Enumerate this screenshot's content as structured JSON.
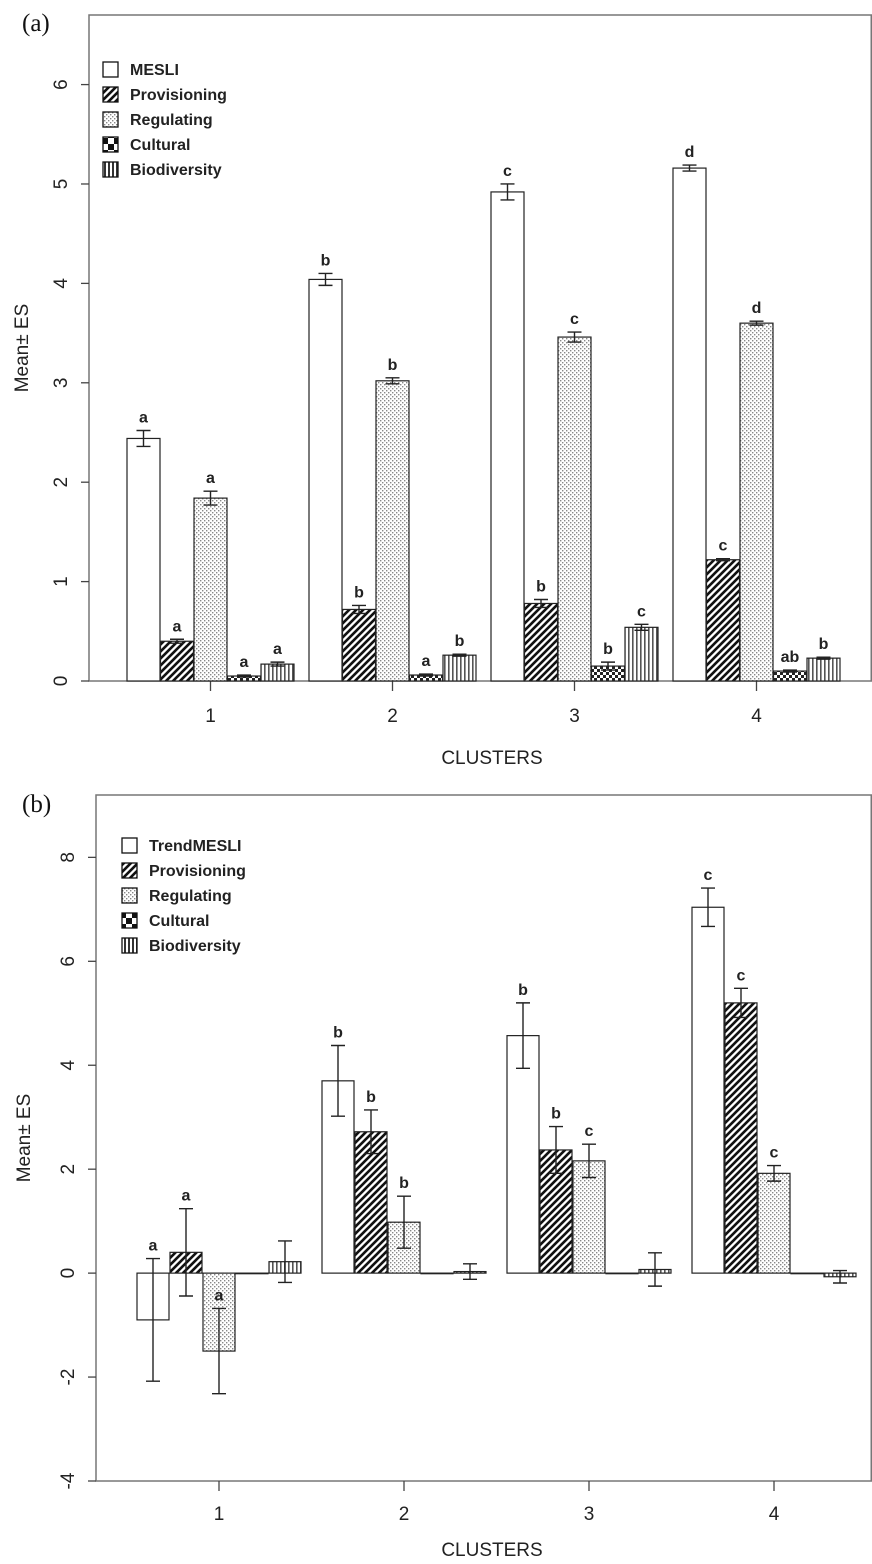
{
  "colors": {
    "axis": "#777777",
    "bar_outline": "#222222",
    "text": "#222222"
  },
  "chart_data": [
    {
      "type": "bar",
      "panel_label": "(a)",
      "xlabel": "CLUSTERS",
      "ylabel": "Mean± ES",
      "categories": [
        "1",
        "2",
        "3",
        "4"
      ],
      "ylim": [
        0,
        6.7
      ],
      "yticks": [
        0,
        1,
        2,
        3,
        4,
        5,
        6
      ],
      "legend_position": "top-left",
      "series": [
        {
          "name": "MESLI",
          "pattern": "white",
          "values": [
            2.44,
            4.04,
            4.92,
            5.16
          ],
          "errors": [
            0.08,
            0.06,
            0.08,
            0.03
          ],
          "labels": [
            "a",
            "b",
            "c",
            "d"
          ]
        },
        {
          "name": "Provisioning",
          "pattern": "diagonal",
          "values": [
            0.4,
            0.72,
            0.78,
            1.22
          ],
          "errors": [
            0.02,
            0.04,
            0.04,
            0.01
          ],
          "labels": [
            "a",
            "b",
            "b",
            "c"
          ]
        },
        {
          "name": "Regulating",
          "pattern": "dotted",
          "values": [
            1.84,
            3.02,
            3.46,
            3.6
          ],
          "errors": [
            0.07,
            0.03,
            0.05,
            0.02
          ],
          "labels": [
            "a",
            "b",
            "c",
            "d"
          ]
        },
        {
          "name": "Cultural",
          "pattern": "checker",
          "values": [
            0.05,
            0.06,
            0.15,
            0.1
          ],
          "errors": [
            0.01,
            0.01,
            0.04,
            0.01
          ],
          "labels": [
            "a",
            "a",
            "b",
            "ab"
          ]
        },
        {
          "name": "Biodiversity",
          "pattern": "vertical",
          "values": [
            0.17,
            0.26,
            0.54,
            0.23
          ],
          "errors": [
            0.02,
            0.01,
            0.03,
            0.01
          ],
          "labels": [
            "a",
            "b",
            "c",
            "b"
          ]
        }
      ]
    },
    {
      "type": "bar",
      "panel_label": "(b)",
      "xlabel": "CLUSTERS",
      "ylabel": "Mean± ES",
      "categories": [
        "1",
        "2",
        "3",
        "4"
      ],
      "ylim": [
        -4,
        9.2
      ],
      "yticks": [
        -4,
        -2,
        0,
        2,
        4,
        6,
        8
      ],
      "legend_position": "top-left",
      "series": [
        {
          "name": "TrendMESLI",
          "pattern": "white",
          "values": [
            -0.9,
            3.7,
            4.57,
            7.04
          ],
          "errors": [
            1.18,
            0.68,
            0.63,
            0.37
          ],
          "labels": [
            "a",
            "b",
            "b",
            "c"
          ]
        },
        {
          "name": "Provisioning",
          "pattern": "diagonal",
          "values": [
            0.4,
            2.72,
            2.37,
            5.2
          ],
          "errors": [
            0.84,
            0.42,
            0.45,
            0.28
          ],
          "labels": [
            "a",
            "b",
            "b",
            "c"
          ]
        },
        {
          "name": "Regulating",
          "pattern": "dotted",
          "values": [
            -1.5,
            0.98,
            2.16,
            1.92
          ],
          "errors": [
            0.82,
            0.5,
            0.32,
            0.15
          ],
          "labels": [
            "a",
            "b",
            "c",
            "c"
          ]
        },
        {
          "name": "Cultural",
          "pattern": "checker",
          "values": [
            0.0,
            0.0,
            0.0,
            0.0
          ],
          "errors": [
            0.0,
            0.0,
            0.0,
            0.0
          ],
          "labels": [
            "",
            "",
            "",
            ""
          ]
        },
        {
          "name": "Biodiversity",
          "pattern": "vertical",
          "values": [
            0.22,
            0.03,
            0.07,
            -0.07
          ],
          "errors": [
            0.4,
            0.15,
            0.32,
            0.12
          ],
          "labels": [
            "",
            "",
            "",
            ""
          ]
        }
      ]
    }
  ]
}
